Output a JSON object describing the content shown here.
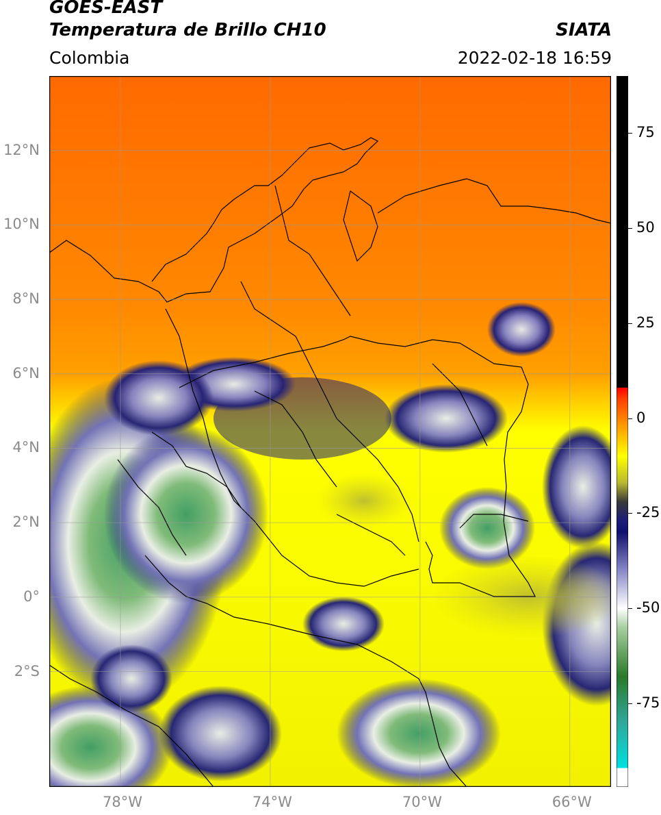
{
  "header": {
    "satellite": "GOES-EAST",
    "product": "Temperatura de Brillo CH10",
    "organization": "SIATA",
    "region": "Colombia",
    "datetime": "2022-02-18 16:59"
  },
  "map": {
    "lat_labels": [
      "12°N",
      "10°N",
      "8°N",
      "6°N",
      "4°N",
      "2°N",
      "0°",
      "2°S"
    ],
    "lon_labels": [
      "78°W",
      "74°W",
      "70°W",
      "66°W"
    ],
    "lat_values": [
      12,
      10,
      8,
      6,
      4,
      2,
      0,
      -2
    ],
    "lon_values": [
      -78,
      -74,
      -70,
      -66
    ],
    "extent": {
      "lon_min": -79.9,
      "lon_max": -64.9,
      "lat_min": -5.1,
      "lat_max": 14.0
    },
    "colors": {
      "border": "#000000",
      "grid": "#9a9a9a",
      "warm": "#ff7800",
      "cold": "#1c1c7a"
    }
  },
  "colorbar": {
    "ticks": [
      "75",
      "50",
      "25",
      "0",
      "-25",
      "-50",
      "-75"
    ],
    "tick_values": [
      75,
      50,
      25,
      0,
      -25,
      -50,
      -75
    ],
    "range": [
      -97,
      90
    ],
    "stops": [
      {
        "v": -97,
        "c": "#ffffff"
      },
      {
        "v": -92,
        "c": "#ffffff"
      },
      {
        "v": -92,
        "c": "#00e0e0"
      },
      {
        "v": -80,
        "c": "#2fa89a"
      },
      {
        "v": -68,
        "c": "#2a7a2a"
      },
      {
        "v": -55,
        "c": "#a8cfa0"
      },
      {
        "v": -50,
        "c": "#ffffff"
      },
      {
        "v": -40,
        "c": "#8888c8"
      },
      {
        "v": -30,
        "c": "#101070"
      },
      {
        "v": -27,
        "c": "#1c1c7a"
      },
      {
        "v": -22,
        "c": "#3a3a3a"
      },
      {
        "v": -17,
        "c": "#b8b830"
      },
      {
        "v": -10,
        "c": "#ffff00"
      },
      {
        "v": -2,
        "c": "#ff9a00"
      },
      {
        "v": 5,
        "c": "#ff4000"
      },
      {
        "v": 8,
        "c": "#ff0000"
      },
      {
        "v": 8,
        "c": "#000000"
      },
      {
        "v": 90,
        "c": "#000000"
      }
    ]
  }
}
